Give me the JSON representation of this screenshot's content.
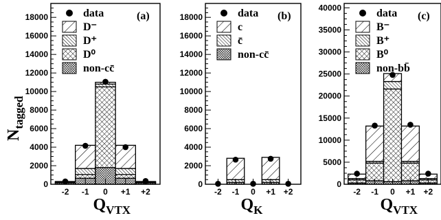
{
  "y_axis_label": "N",
  "y_axis_label_sub": "tagged",
  "chart_data": [
    {
      "type": "bar",
      "stacked": true,
      "panel_label": "(a)",
      "categories": [
        "-2",
        "-1",
        "0",
        "+1",
        "+2"
      ],
      "xlabel": "Q",
      "xlabel_sub": "VTX",
      "ylim": [
        0,
        19500
      ],
      "yticks": [
        0,
        2000,
        4000,
        6000,
        8000,
        10000,
        12000,
        14000,
        16000,
        18000
      ],
      "legend": [
        {
          "label": "data",
          "marker": "dot"
        },
        {
          "label": "D⁻",
          "pattern": "diag-sparse"
        },
        {
          "label": "D⁺",
          "pattern": "diag-dense"
        },
        {
          "label": "D⁰",
          "pattern": "cross"
        },
        {
          "label": "non-cc̄",
          "pattern": "dense-grid"
        }
      ],
      "series": [
        {
          "name": "non-cc̄",
          "pattern": "dense-grid",
          "values": [
            150,
            650,
            1800,
            650,
            150
          ]
        },
        {
          "name": "D⁰",
          "pattern": "cross",
          "values": [
            0,
            400,
            8700,
            400,
            0
          ]
        },
        {
          "name": "D⁺",
          "pattern": "diag-dense",
          "values": [
            50,
            650,
            300,
            650,
            50
          ]
        },
        {
          "name": "D⁻",
          "pattern": "diag-sparse",
          "values": [
            100,
            2500,
            200,
            2500,
            100
          ]
        }
      ],
      "data_points": [
        300,
        4150,
        11050,
        4000,
        350
      ]
    },
    {
      "type": "bar",
      "stacked": true,
      "panel_label": "(b)",
      "categories": [
        "-2",
        "-1",
        "0",
        "+1",
        "+2"
      ],
      "xlabel": "Q",
      "xlabel_sub": "K",
      "ylim": [
        0,
        19500
      ],
      "yticks": [
        0,
        2000,
        4000,
        6000,
        8000,
        10000,
        12000,
        14000,
        16000,
        18000
      ],
      "legend": [
        {
          "label": "data",
          "marker": "dot"
        },
        {
          "label": "c",
          "pattern": "diag-sparse"
        },
        {
          "label": "c̄",
          "pattern": "diag-dense"
        },
        {
          "label": "non-cc̄",
          "pattern": "dense-grid"
        }
      ],
      "series": [
        {
          "name": "non-cc̄",
          "pattern": "dense-grid",
          "values": [
            0,
            200,
            0,
            200,
            0
          ]
        },
        {
          "name": "c̄",
          "pattern": "diag-dense",
          "values": [
            0,
            300,
            0,
            300,
            0
          ]
        },
        {
          "name": "c",
          "pattern": "diag-sparse",
          "values": [
            0,
            2300,
            0,
            2400,
            0
          ]
        }
      ],
      "data_points": [
        50,
        2650,
        50,
        2750,
        50
      ]
    },
    {
      "type": "bar",
      "stacked": true,
      "panel_label": "(c)",
      "categories": [
        "-2",
        "-1",
        "0",
        "+1",
        "+2"
      ],
      "xlabel": "Q",
      "xlabel_sub": "VTX",
      "ylim": [
        0,
        41000
      ],
      "yticks": [
        0,
        5000,
        10000,
        15000,
        20000,
        25000,
        30000,
        35000,
        40000
      ],
      "legend": [
        {
          "label": "data",
          "marker": "dot"
        },
        {
          "label": "B⁻",
          "pattern": "diag-sparse"
        },
        {
          "label": "B⁺",
          "pattern": "diag-dense"
        },
        {
          "label": "B⁰",
          "pattern": "cross"
        },
        {
          "label": "non-bb̄",
          "pattern": "dense-grid"
        }
      ],
      "series": [
        {
          "name": "non-bb̄",
          "pattern": "dense-grid",
          "values": [
            300,
            800,
            600,
            800,
            300
          ]
        },
        {
          "name": "B⁰",
          "pattern": "cross",
          "values": [
            700,
            4000,
            21000,
            4000,
            700
          ]
        },
        {
          "name": "B⁺",
          "pattern": "diag-dense",
          "values": [
            300,
            400,
            1700,
            400,
            300
          ]
        },
        {
          "name": "B⁻",
          "pattern": "diag-sparse",
          "values": [
            1000,
            8000,
            1800,
            8000,
            1000
          ]
        }
      ],
      "data_points": [
        2400,
        13300,
        24800,
        13500,
        2400
      ]
    }
  ]
}
